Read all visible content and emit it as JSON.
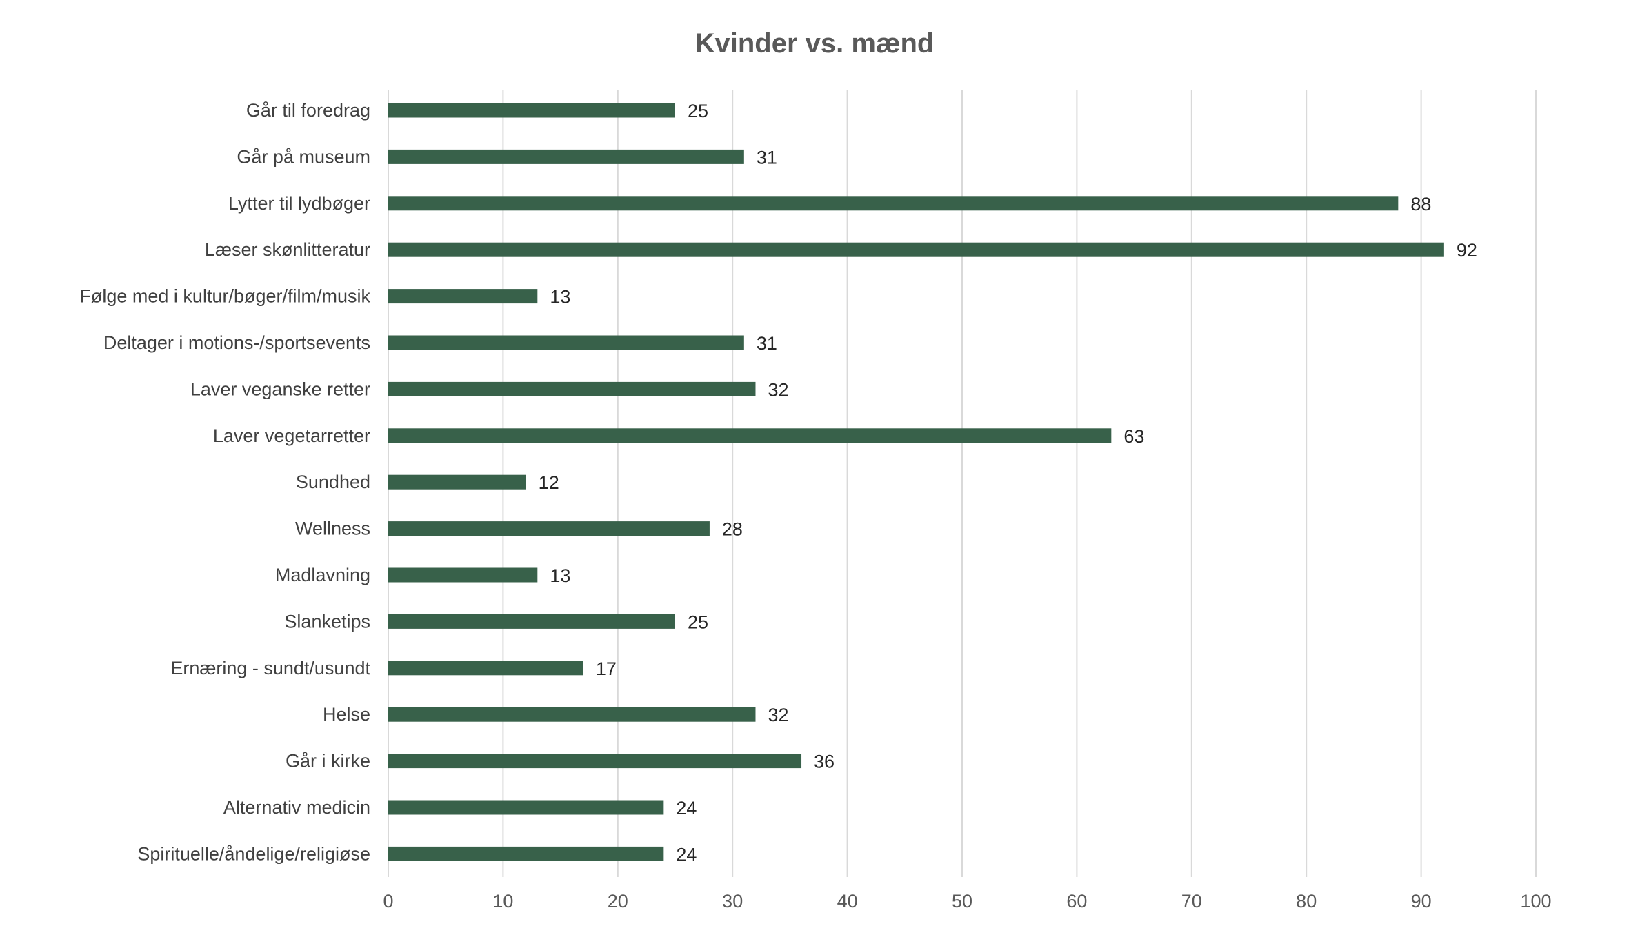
{
  "chart_data": {
    "type": "bar",
    "orientation": "horizontal",
    "title": "Kvinder vs. mænd",
    "xlabel": "",
    "ylabel": "",
    "categories": [
      "Går til foredrag",
      "Går på museum",
      "Lytter til lydbøger",
      "Læser skønlitteratur",
      "Følge med i kultur/bøger/film/musik",
      "Deltager i motions-/sportsevents",
      "Laver veganske retter",
      "Laver vegetarretter",
      "Sundhed",
      "Wellness",
      "Madlavning",
      "Slanketips",
      "Ernæring - sundt/usundt",
      "Helse",
      "Går i kirke",
      "Alternativ medicin",
      "Spirituelle/åndelige/religiøse"
    ],
    "values": [
      25,
      31,
      88,
      92,
      13,
      31,
      32,
      63,
      12,
      28,
      13,
      25,
      17,
      32,
      36,
      24,
      24
    ],
    "xlim": [
      0,
      100
    ],
    "ticks": [
      "0",
      "10",
      "20",
      "30",
      "40",
      "50",
      "60",
      "70",
      "80",
      "90",
      "100"
    ],
    "grid": true,
    "data_labels": true,
    "legend": "none",
    "bar_color": "#38614a"
  }
}
